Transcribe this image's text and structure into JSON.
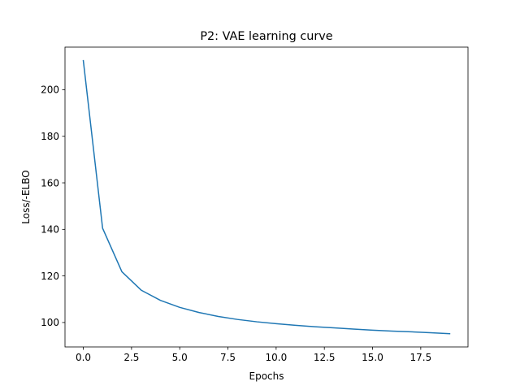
{
  "chart_data": {
    "type": "line",
    "title": "P2: VAE learning curve",
    "xlabel": "Epochs",
    "ylabel": "Loss/-ELBO",
    "xlim": [
      -0.95,
      19.95
    ],
    "ylim": [
      89.5,
      218.3
    ],
    "x_ticks": [
      0.0,
      2.5,
      5.0,
      7.5,
      10.0,
      12.5,
      15.0,
      17.5
    ],
    "x_tick_labels": [
      "0.0",
      "2.5",
      "5.0",
      "7.5",
      "10.0",
      "12.5",
      "15.0",
      "17.5"
    ],
    "y_ticks": [
      100,
      120,
      140,
      160,
      180,
      200
    ],
    "y_tick_labels": [
      "100",
      "120",
      "140",
      "160",
      "180",
      "200"
    ],
    "grid": false,
    "series": [
      {
        "color": "#1f77b4",
        "x": [
          0,
          1,
          2,
          3,
          4,
          5,
          6,
          7,
          8,
          9,
          10,
          11,
          12,
          13,
          14,
          15,
          16,
          17,
          18,
          19
        ],
        "values": [
          212.5,
          140.5,
          121.8,
          113.9,
          109.5,
          106.5,
          104.3,
          102.6,
          101.3,
          100.3,
          99.5,
          98.8,
          98.2,
          97.7,
          97.2,
          96.7,
          96.3,
          96.0,
          95.6,
          95.2
        ]
      }
    ]
  }
}
